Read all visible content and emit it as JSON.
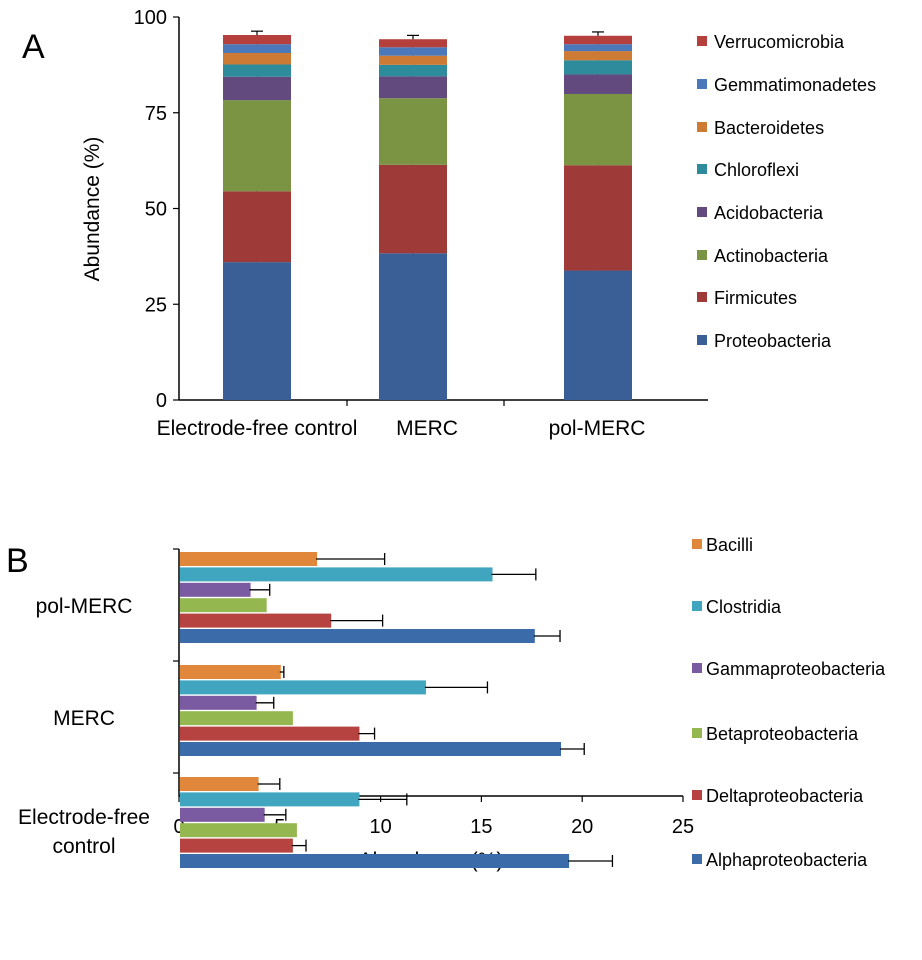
{
  "chart_data": [
    {
      "panel_label": "A",
      "type": "bar",
      "stacked": true,
      "orientation": "vertical",
      "categories": [
        "Electrode-free control",
        "MERC",
        "pol-MERC"
      ],
      "ylabel": "Abundance (%)",
      "ylim": [
        0,
        100
      ],
      "yticks": [
        0,
        25,
        50,
        75,
        100
      ],
      "legend_position": "right",
      "series": [
        {
          "name": "Proteobacteria",
          "color": "#3A5F97",
          "values": [
            36.0,
            38.3,
            33.8
          ],
          "err": [
            4.2,
            1.5,
            4.0
          ]
        },
        {
          "name": "Firmicutes",
          "color": "#9E3A38",
          "values": [
            18.5,
            23.1,
            27.5
          ],
          "err": [
            4.4,
            3.1,
            5.0
          ]
        },
        {
          "name": "Actinobacteria",
          "color": "#7A9443",
          "values": [
            23.8,
            17.4,
            18.6
          ],
          "err": [
            0,
            0,
            0
          ]
        },
        {
          "name": "Acidobacteria",
          "color": "#62497E",
          "values": [
            6.1,
            5.7,
            5.1
          ],
          "err": [
            1.6,
            2.2,
            2.4
          ]
        },
        {
          "name": "Chloroflexi",
          "color": "#2E8B9C",
          "values": [
            3.2,
            3.0,
            3.7
          ],
          "err": [
            0.8,
            0.8,
            0.8
          ]
        },
        {
          "name": "Bacteroidetes",
          "color": "#CC7A34",
          "values": [
            3.0,
            2.4,
            2.4
          ],
          "err": [
            0.6,
            0.6,
            0.6
          ]
        },
        {
          "name": "Gemmatimonadetes",
          "color": "#4A78B8",
          "values": [
            2.3,
            2.2,
            1.8
          ],
          "err": [
            0.4,
            0.4,
            0.4
          ]
        },
        {
          "name": "Verrucomicrobia",
          "color": "#B53F3C",
          "values": [
            2.4,
            2.1,
            2.2
          ],
          "err": [
            1.0,
            1.0,
            1.0
          ]
        }
      ]
    },
    {
      "panel_label": "B",
      "type": "bar",
      "orientation": "horizontal",
      "categories": [
        "pol-MERC",
        "MERC",
        "Electrode-free control"
      ],
      "category_lines": [
        [
          "pol-MERC"
        ],
        [
          "MERC"
        ],
        [
          "Electrode-free",
          "control"
        ]
      ],
      "xlabel": "Abundance (%)",
      "xlim": [
        0,
        25
      ],
      "xticks": [
        0,
        5,
        10,
        15,
        20,
        25
      ],
      "legend_position": "right",
      "series": [
        {
          "name": "Bacilli",
          "color": "#E0873C",
          "values": [
            6.8,
            5.0,
            3.9
          ],
          "err": [
            3.4,
            0.2,
            1.1
          ]
        },
        {
          "name": "Clostridia",
          "color": "#40A6C0",
          "values": [
            15.5,
            12.2,
            8.9
          ],
          "err": [
            2.2,
            3.1,
            2.4
          ]
        },
        {
          "name": "Gammaproteobacteria",
          "color": "#7A5AA0",
          "values": [
            3.5,
            3.8,
            4.2
          ],
          "err": [
            1.0,
            0.9,
            1.1
          ]
        },
        {
          "name": "Betaproteobacteria",
          "color": "#94B84F",
          "values": [
            4.3,
            5.6,
            5.8
          ],
          "err": [
            0,
            0,
            0
          ]
        },
        {
          "name": "Deltaproteobacteria",
          "color": "#B6433F",
          "values": [
            7.5,
            8.9,
            5.6
          ],
          "err": [
            2.6,
            0.8,
            0.7
          ]
        },
        {
          "name": "Alphaproteobacteria",
          "color": "#3C6BAA",
          "values": [
            17.6,
            18.9,
            19.3
          ],
          "err": [
            1.3,
            1.2,
            2.2
          ]
        }
      ]
    }
  ]
}
